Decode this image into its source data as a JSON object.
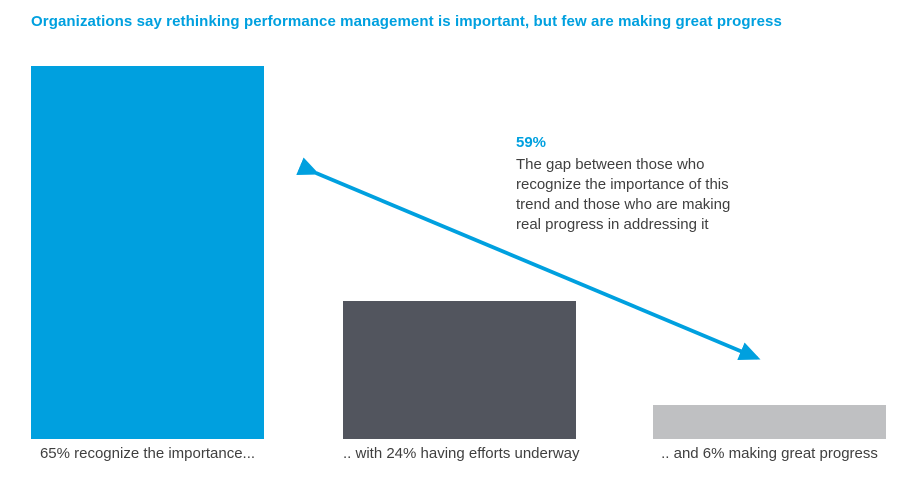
{
  "title": "Organizations say rethinking performance management is important, but few are making great progress",
  "colors": {
    "accent_blue": "#00A0DF",
    "dark_gray": "#52555E",
    "light_gray": "#BFC0C2",
    "body_text": "#3F3F3F"
  },
  "annotation": {
    "gap_value": "59%",
    "text": "The gap between those who recognize the importance of this trend and those who are making real progress in addressing it"
  },
  "chart_data": {
    "type": "bar",
    "title": "Organizations say rethinking performance management is important, but few are making great progress",
    "categories": [
      "65% recognize the importance...",
      ".. with 24% having efforts underway",
      ".. and 6% making great progress"
    ],
    "values": [
      65,
      24,
      6
    ],
    "colors": [
      "#00A0DF",
      "#52555E",
      "#BFC0C2"
    ],
    "xlabel": "",
    "ylabel": "",
    "ylim": [
      0,
      65
    ],
    "grid": false,
    "legend": "none",
    "annotation": {
      "label": "59%",
      "meaning": "gap between recognition (65%) and great progress (6%)",
      "arrow": "double-headed, from top of 65% bar to top of 6% bar"
    }
  }
}
